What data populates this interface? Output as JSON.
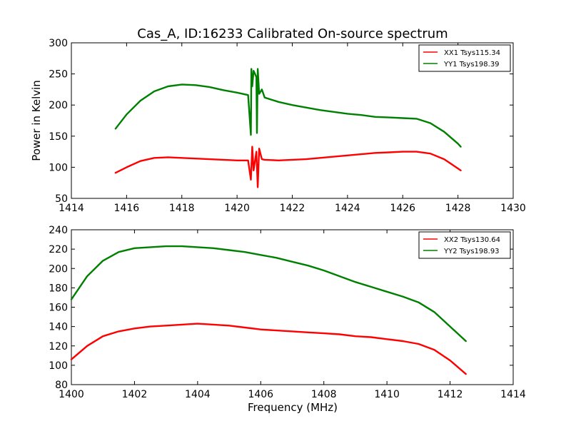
{
  "figure": {
    "title": "Cas_A, ID:16233 Calibrated On-source spectrum",
    "colors": {
      "xx": "#ff0000",
      "yy": "#008000",
      "axes": "#000000",
      "background": "#ffffff"
    }
  },
  "chart_data": [
    {
      "type": "line",
      "title": "Cas_A, ID:16233 Calibrated On-source spectrum",
      "xlabel": "",
      "ylabel": "Power in Kelvin",
      "xlim": [
        1414,
        1430
      ],
      "ylim": [
        50,
        300
      ],
      "xticks": [
        "1414",
        "1416",
        "1418",
        "1420",
        "1422",
        "1424",
        "1426",
        "1428",
        "1430"
      ],
      "yticks": [
        "50",
        "100",
        "150",
        "200",
        "250",
        "300"
      ],
      "grid": false,
      "legend_position": "top-right",
      "series": [
        {
          "name": "XX1 Tsys115.34",
          "color": "#ff0000",
          "x": [
            1415.6,
            1416.0,
            1416.5,
            1417.0,
            1417.5,
            1418.0,
            1418.5,
            1419.0,
            1419.5,
            1420.0,
            1420.4,
            1420.5,
            1420.55,
            1420.6,
            1420.7,
            1420.75,
            1420.8,
            1420.9,
            1421.0,
            1421.5,
            1422.0,
            1422.5,
            1423.0,
            1423.5,
            1424.0,
            1424.5,
            1425.0,
            1425.5,
            1426.0,
            1426.5,
            1427.0,
            1427.5,
            1428.0,
            1428.1
          ],
          "y": [
            91,
            100,
            110,
            115,
            116,
            115,
            114,
            113,
            112,
            111,
            111,
            80,
            133,
            95,
            125,
            68,
            130,
            113,
            112,
            111,
            112,
            113,
            115,
            117,
            119,
            121,
            123,
            124,
            125,
            125,
            122,
            113,
            98,
            95
          ]
        },
        {
          "name": "YY1 Tsys198.39",
          "color": "#008000",
          "x": [
            1415.6,
            1416.0,
            1416.5,
            1417.0,
            1417.5,
            1418.0,
            1418.5,
            1419.0,
            1419.5,
            1420.0,
            1420.4,
            1420.5,
            1420.52,
            1420.55,
            1420.6,
            1420.7,
            1420.72,
            1420.75,
            1420.8,
            1420.9,
            1421.0,
            1421.5,
            1422.0,
            1422.5,
            1423.0,
            1423.5,
            1424.0,
            1424.5,
            1425.0,
            1425.5,
            1426.0,
            1426.5,
            1427.0,
            1427.5,
            1428.0,
            1428.1
          ],
          "y": [
            162,
            185,
            207,
            222,
            230,
            233,
            232,
            229,
            224,
            220,
            216,
            152,
            258,
            230,
            255,
            245,
            155,
            258,
            218,
            225,
            212,
            205,
            200,
            196,
            192,
            189,
            186,
            184,
            181,
            180,
            179,
            178,
            171,
            157,
            138,
            133
          ]
        }
      ]
    },
    {
      "type": "line",
      "title": "",
      "xlabel": "Frequency (MHz)",
      "ylabel": "",
      "xlim": [
        1400,
        1414
      ],
      "ylim": [
        80,
        240
      ],
      "xticks": [
        "1400",
        "1402",
        "1404",
        "1406",
        "1408",
        "1410",
        "1412",
        "1414"
      ],
      "yticks": [
        "80",
        "100",
        "120",
        "140",
        "160",
        "180",
        "200",
        "220",
        "240"
      ],
      "grid": false,
      "legend_position": "top-right",
      "series": [
        {
          "name": "XX2 Tsys130.64",
          "color": "#ff0000",
          "x": [
            1400.0,
            1400.5,
            1401.0,
            1401.5,
            1402.0,
            1402.5,
            1403.0,
            1403.5,
            1404.0,
            1404.5,
            1405.0,
            1405.5,
            1406.0,
            1406.5,
            1407.0,
            1407.5,
            1408.0,
            1408.5,
            1409.0,
            1409.5,
            1410.0,
            1410.5,
            1411.0,
            1411.5,
            1412.0,
            1412.5
          ],
          "y": [
            106,
            120,
            130,
            135,
            138,
            140,
            141,
            142,
            143,
            142,
            141,
            139,
            137,
            136,
            135,
            134,
            133,
            132,
            130,
            129,
            127,
            125,
            122,
            116,
            105,
            91
          ]
        },
        {
          "name": "YY2 Tsys198.93",
          "color": "#008000",
          "x": [
            1400.0,
            1400.5,
            1401.0,
            1401.5,
            1402.0,
            1402.5,
            1403.0,
            1403.5,
            1404.0,
            1404.5,
            1405.0,
            1405.5,
            1406.0,
            1406.5,
            1407.0,
            1407.5,
            1408.0,
            1408.5,
            1409.0,
            1409.5,
            1410.0,
            1410.5,
            1411.0,
            1411.5,
            1412.0,
            1412.5
          ],
          "y": [
            168,
            192,
            208,
            217,
            221,
            222,
            223,
            223,
            222,
            221,
            219,
            217,
            214,
            211,
            207,
            203,
            198,
            192,
            186,
            181,
            176,
            171,
            165,
            155,
            140,
            125
          ]
        }
      ]
    }
  ]
}
